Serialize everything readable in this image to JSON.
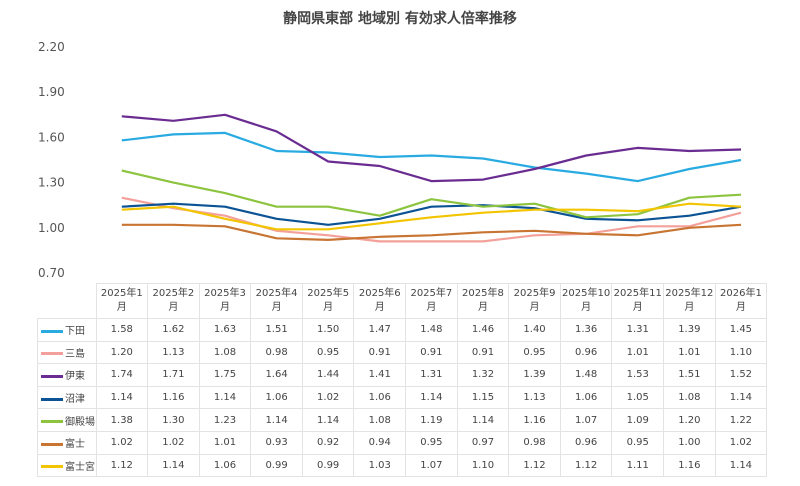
{
  "chart_data": {
    "type": "line",
    "title": "静岡県東部 地域別 有効求人倍率推移",
    "xlabel": "",
    "ylabel": "",
    "ylim": [
      0.7,
      2.2
    ],
    "yticks": [
      "0.70",
      "1.00",
      "1.30",
      "1.60",
      "1.90",
      "2.20"
    ],
    "grid": false,
    "legend": "table-below",
    "categories": [
      "2025年1月",
      "2025年2月",
      "2025年3月",
      "2025年4月",
      "2025年5月",
      "2025年6月",
      "2025年7月",
      "2025年8月",
      "2025年9月",
      "2025年10月",
      "2025年11月",
      "2025年12月",
      "2026年1月"
    ],
    "series": [
      {
        "name": "下田",
        "color": "#29abe2",
        "values": [
          1.58,
          1.62,
          1.63,
          1.51,
          1.5,
          1.47,
          1.48,
          1.46,
          1.4,
          1.36,
          1.31,
          1.39,
          1.45
        ]
      },
      {
        "name": "三島",
        "color": "#f4a09a",
        "values": [
          1.2,
          1.13,
          1.08,
          0.98,
          0.95,
          0.91,
          0.91,
          0.91,
          0.95,
          0.96,
          1.01,
          1.01,
          1.1
        ]
      },
      {
        "name": "伊東",
        "color": "#6a2c91",
        "values": [
          1.74,
          1.71,
          1.75,
          1.64,
          1.44,
          1.41,
          1.31,
          1.32,
          1.39,
          1.48,
          1.53,
          1.51,
          1.52
        ]
      },
      {
        "name": "沼津",
        "color": "#0b5394",
        "values": [
          1.14,
          1.16,
          1.14,
          1.06,
          1.02,
          1.06,
          1.14,
          1.15,
          1.13,
          1.06,
          1.05,
          1.08,
          1.14
        ]
      },
      {
        "name": "御殿場",
        "color": "#8cc43f",
        "values": [
          1.38,
          1.3,
          1.23,
          1.14,
          1.14,
          1.08,
          1.19,
          1.14,
          1.16,
          1.07,
          1.09,
          1.2,
          1.22
        ]
      },
      {
        "name": "富士",
        "color": "#c87533",
        "values": [
          1.02,
          1.02,
          1.01,
          0.93,
          0.92,
          0.94,
          0.95,
          0.97,
          0.98,
          0.96,
          0.95,
          1.0,
          1.02
        ]
      },
      {
        "name": "富士宮",
        "color": "#f2c500",
        "values": [
          1.12,
          1.14,
          1.06,
          0.99,
          0.99,
          1.03,
          1.07,
          1.1,
          1.12,
          1.12,
          1.11,
          1.16,
          1.14
        ]
      }
    ]
  }
}
